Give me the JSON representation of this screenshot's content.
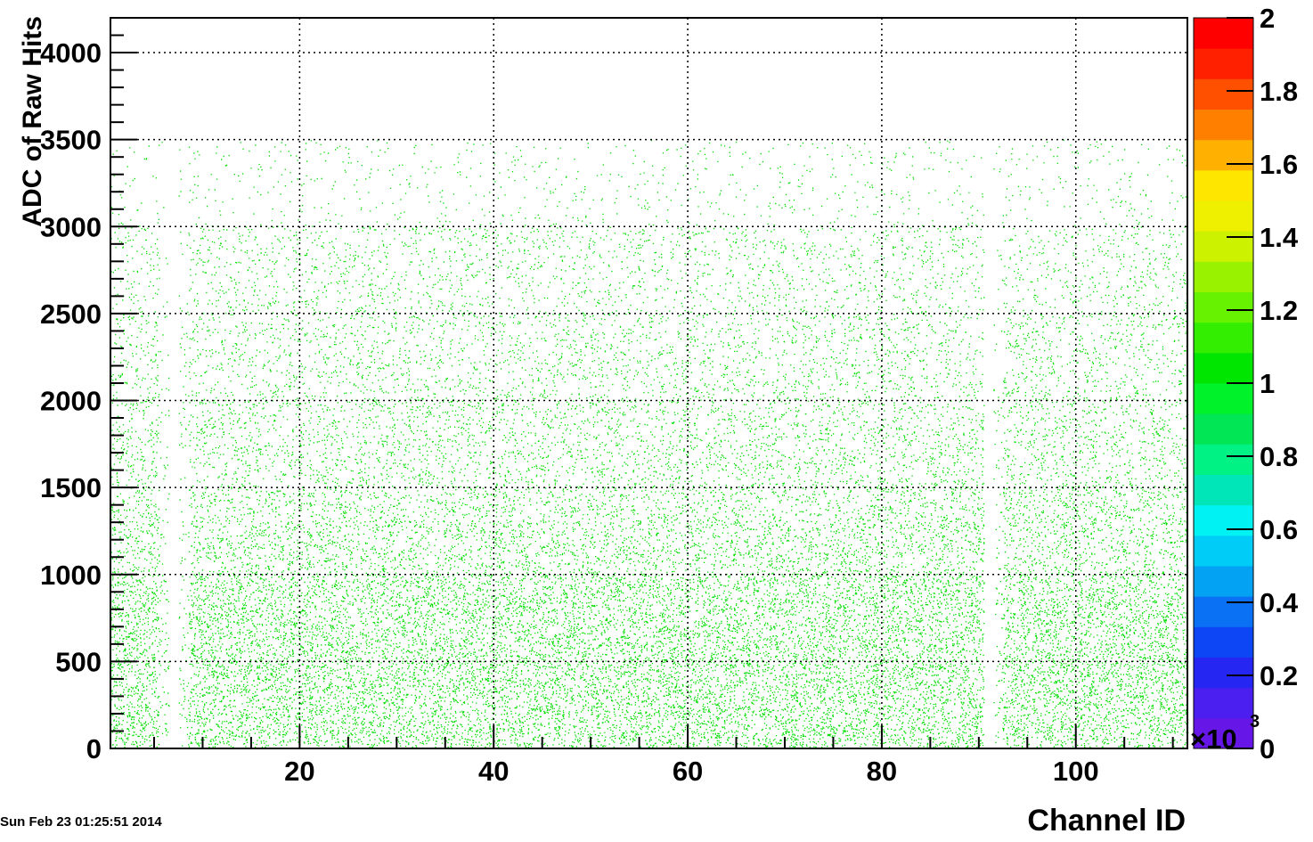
{
  "timestamp": "Sun Feb 23 01:25:51 2014",
  "chart_data": {
    "type": "heatmap",
    "title": "",
    "xlabel": "Channel ID",
    "ylabel": "ADC of Raw Hits",
    "xlim": [
      0.5,
      111.5
    ],
    "ylim": [
      0,
      4200
    ],
    "x_ticks": [
      20,
      40,
      60,
      80,
      100
    ],
    "y_ticks": [
      0,
      500,
      1000,
      1500,
      2000,
      2500,
      3000,
      3500,
      4000
    ],
    "grid": true,
    "colorbar": {
      "range": [
        0,
        2
      ],
      "ticks": [
        "0",
        "0.2",
        "0.4",
        "0.6",
        "0.8",
        "1",
        "1.2",
        "1.4",
        "1.6",
        "1.8",
        "2"
      ],
      "multiplier": "×10",
      "multiplier_exponent": "3",
      "colors": [
        "#6617e8",
        "#4a1ff0",
        "#2626f2",
        "#0d47f5",
        "#0a71f5",
        "#03a2f2",
        "#00cdf7",
        "#00f2f2",
        "#00e6b8",
        "#00f284",
        "#00e655",
        "#00f22a",
        "#00e600",
        "#33ee00",
        "#66f200",
        "#99f200",
        "#ccf200",
        "#eef000",
        "#ffe600",
        "#ffb000",
        "#ff8000",
        "#ff5000",
        "#ff2000",
        "#ff0000"
      ]
    },
    "data_description_marker_color": "#00dd00",
    "channel_density_profile": {
      "adc_bins": [
        0,
        500,
        1000,
        1500,
        2000,
        2500,
        3000,
        3500
      ],
      "relative_density": [
        1.0,
        0.95,
        0.6,
        0.45,
        0.35,
        0.28,
        0.1,
        0.01
      ]
    },
    "empty_channels": [
      7,
      91
    ],
    "sparse_channels": [
      6,
      8,
      92
    ]
  }
}
